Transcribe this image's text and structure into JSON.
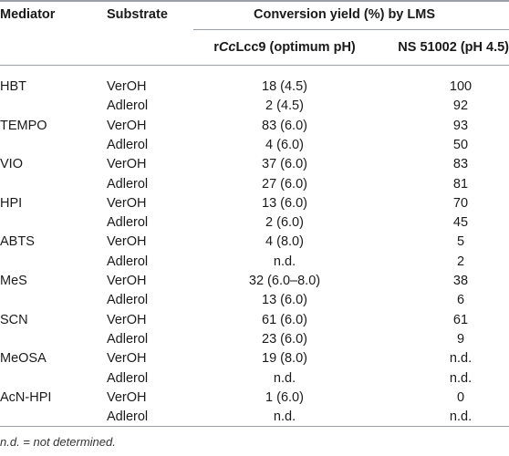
{
  "header": {
    "mediator": "Mediator",
    "substrate": "Substrate",
    "group": "Conversion yield (%) by LMS",
    "col1_prefix": "r",
    "col1_italic": "Cc",
    "col1_suffix": "Lcc9 (optimum pH)",
    "col2": "NS 51002 (pH 4.5)"
  },
  "rows": [
    {
      "mediator": "HBT",
      "substrate": "VerOH",
      "rcc": "18 (4.5)",
      "ns": "100"
    },
    {
      "mediator": "",
      "substrate": "Adlerol",
      "rcc": "2 (4.5)",
      "ns": "92"
    },
    {
      "mediator": "TEMPO",
      "substrate": "VerOH",
      "rcc": "83 (6.0)",
      "ns": "93"
    },
    {
      "mediator": "",
      "substrate": "Adlerol",
      "rcc": "4 (6.0)",
      "ns": "50"
    },
    {
      "mediator": "VIO",
      "substrate": "VerOH",
      "rcc": "37 (6.0)",
      "ns": "83"
    },
    {
      "mediator": "",
      "substrate": "Adlerol",
      "rcc": "27 (6.0)",
      "ns": "81"
    },
    {
      "mediator": "HPI",
      "substrate": "VerOH",
      "rcc": "13 (6.0)",
      "ns": "70"
    },
    {
      "mediator": "",
      "substrate": "Adlerol",
      "rcc": "2 (6.0)",
      "ns": "45"
    },
    {
      "mediator": "ABTS",
      "substrate": "VerOH",
      "rcc": "4 (8.0)",
      "ns": "5"
    },
    {
      "mediator": "",
      "substrate": "Adlerol",
      "rcc": "n.d.",
      "ns": "2"
    },
    {
      "mediator": "MeS",
      "substrate": "VerOH",
      "rcc": "32 (6.0–8.0)",
      "ns": "38"
    },
    {
      "mediator": "",
      "substrate": "Adlerol",
      "rcc": "13 (6.0)",
      "ns": "6"
    },
    {
      "mediator": "SCN",
      "substrate": "VerOH",
      "rcc": "61 (6.0)",
      "ns": "61"
    },
    {
      "mediator": "",
      "substrate": "Adlerol",
      "rcc": "23 (6.0)",
      "ns": "9"
    },
    {
      "mediator": "MeOSA",
      "substrate": "VerOH",
      "rcc": "19 (8.0)",
      "ns": "n.d."
    },
    {
      "mediator": "",
      "substrate": "Adlerol",
      "rcc": "n.d.",
      "ns": "n.d."
    },
    {
      "mediator": "AcN-HPI",
      "substrate": "VerOH",
      "rcc": "1 (6.0)",
      "ns": "0"
    },
    {
      "mediator": "",
      "substrate": "Adlerol",
      "rcc": "n.d.",
      "ns": "n.d."
    }
  ],
  "footnote": "n.d. = not determined."
}
